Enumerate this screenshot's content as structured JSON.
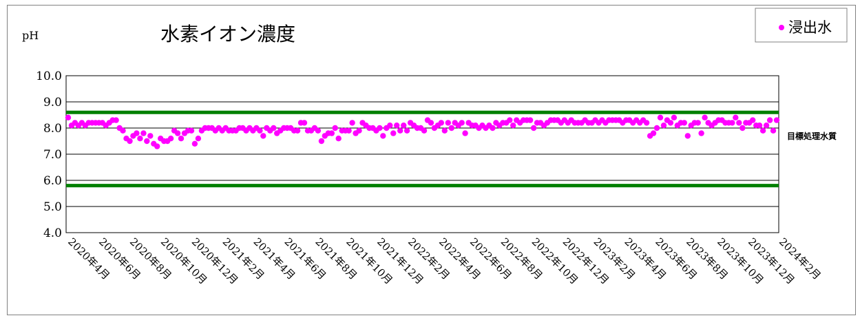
{
  "chart_data": {
    "type": "scatter",
    "title": "水素イオン濃度",
    "ylabel": "pH",
    "ylim": [
      4.0,
      10.0
    ],
    "y_ticks": [
      "4.0",
      "5.0",
      "6.0",
      "7.0",
      "8.0",
      "9.0",
      "10.0"
    ],
    "x_tick_labels": [
      "2020年4月",
      "2020年6月",
      "2020年8月",
      "2020年10月",
      "2020年12月",
      "2021年2月",
      "2021年4月",
      "2021年6月",
      "2021年8月",
      "2021年10月",
      "2021年12月",
      "2022年2月",
      "2022年4月",
      "2022年6月",
      "2022年8月",
      "2022年10月",
      "2022年12月",
      "2023年2月",
      "2023年4月",
      "2023年6月",
      "2023年8月",
      "2023年10月",
      "2023年12月",
      "2024年2月"
    ],
    "grid": true,
    "legend_position": "top-right",
    "series": [
      {
        "name": "浸出水",
        "color": "#ff00ff",
        "values": [
          8.4,
          8.1,
          8.2,
          8.1,
          8.2,
          8.1,
          8.2,
          8.2,
          8.2,
          8.2,
          8.2,
          8.1,
          8.2,
          8.3,
          8.3,
          8.0,
          7.9,
          7.6,
          7.5,
          7.7,
          7.8,
          7.6,
          7.8,
          7.5,
          7.7,
          7.4,
          7.3,
          7.6,
          7.5,
          7.5,
          7.6,
          7.9,
          7.8,
          7.6,
          7.8,
          7.9,
          7.9,
          7.4,
          7.6,
          7.9,
          8.0,
          8.0,
          8.0,
          7.9,
          8.0,
          7.9,
          8.0,
          7.9,
          7.9,
          7.9,
          8.0,
          8.0,
          7.9,
          8.0,
          7.9,
          8.0,
          7.9,
          7.7,
          8.0,
          7.9,
          8.0,
          7.8,
          7.9,
          8.0,
          8.0,
          8.0,
          7.9,
          7.9,
          8.2,
          8.2,
          7.9,
          7.9,
          8.0,
          7.9,
          7.5,
          7.7,
          7.8,
          7.8,
          8.0,
          7.6,
          7.9,
          7.9,
          7.9,
          8.2,
          7.8,
          7.9,
          8.2,
          8.1,
          8.0,
          8.0,
          7.9,
          8.0,
          7.7,
          8.0,
          8.1,
          7.8,
          8.1,
          7.9,
          8.1,
          7.9,
          8.2,
          8.1,
          8.0,
          8.0,
          7.9,
          8.3,
          8.2,
          8.0,
          8.1,
          8.2,
          7.9,
          8.2,
          8.0,
          8.2,
          8.1,
          8.2,
          7.8,
          8.2,
          8.1,
          8.1,
          8.0,
          8.1,
          8.0,
          8.1,
          8.0,
          8.2,
          8.1,
          8.2,
          8.2,
          8.3,
          8.1,
          8.3,
          8.2,
          8.3,
          8.3,
          8.3,
          8.0,
          8.2,
          8.2,
          8.1,
          8.2,
          8.3,
          8.3,
          8.3,
          8.2,
          8.3,
          8.2,
          8.3,
          8.2,
          8.2,
          8.2,
          8.3,
          8.2,
          8.2,
          8.3,
          8.2,
          8.3,
          8.2,
          8.3,
          8.3,
          8.3,
          8.3,
          8.2,
          8.3,
          8.3,
          8.2,
          8.3,
          8.2,
          8.3,
          8.2,
          7.7,
          7.8,
          8.0,
          8.4,
          8.1,
          8.3,
          8.2,
          8.4,
          8.1,
          8.2,
          8.2,
          7.7,
          8.1,
          8.2,
          8.2,
          7.8,
          8.4,
          8.2,
          8.1,
          8.2,
          8.3,
          8.3,
          8.2,
          8.2,
          8.2,
          8.4,
          8.2,
          8.0,
          8.2,
          8.2,
          8.3,
          8.1,
          8.1,
          7.9,
          8.1,
          8.3,
          7.9,
          8.3
        ]
      }
    ],
    "reference_lines": [
      {
        "value": 8.6,
        "color": "#008000"
      },
      {
        "value": 5.8,
        "color": "#008000"
      }
    ],
    "reference_label": "目標処理水質"
  }
}
